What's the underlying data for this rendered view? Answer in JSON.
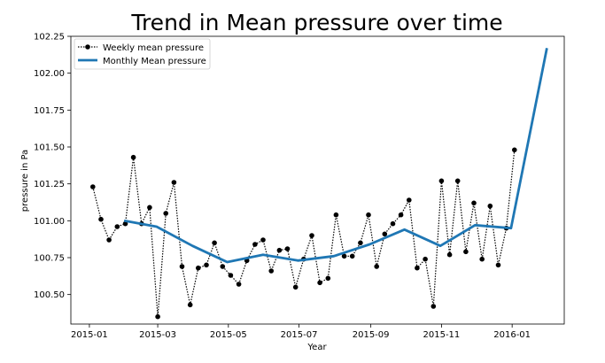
{
  "chart_data": {
    "type": "line",
    "title": "Trend in Mean pressure over time",
    "xlabel": "Year",
    "ylabel": "pressure in Pa",
    "x_ticks": [
      "2015-01",
      "2015-03",
      "2015-05",
      "2015-07",
      "2015-09",
      "2015-11",
      "2016-01"
    ],
    "y_ticks": [
      "100.50",
      "100.75",
      "101.00",
      "101.25",
      "101.50",
      "101.75",
      "102.00",
      "102.25"
    ],
    "ylim": [
      100.3,
      102.25
    ],
    "xlim": [
      "2014-12-16",
      "2016-02-15"
    ],
    "grid": false,
    "legend_position": "upper-left",
    "series": [
      {
        "name": "Weekly mean pressure",
        "style": "dotted-line-with-markers",
        "color": "#000000",
        "x": [
          "2015-01-04",
          "2015-01-11",
          "2015-01-18",
          "2015-01-25",
          "2015-02-01",
          "2015-02-08",
          "2015-02-15",
          "2015-02-22",
          "2015-03-01",
          "2015-03-08",
          "2015-03-15",
          "2015-03-22",
          "2015-03-29",
          "2015-04-05",
          "2015-04-12",
          "2015-04-19",
          "2015-04-26",
          "2015-05-03",
          "2015-05-10",
          "2015-05-17",
          "2015-05-24",
          "2015-05-31",
          "2015-06-07",
          "2015-06-14",
          "2015-06-21",
          "2015-06-28",
          "2015-07-05",
          "2015-07-12",
          "2015-07-19",
          "2015-07-26",
          "2015-08-02",
          "2015-08-09",
          "2015-08-16",
          "2015-08-23",
          "2015-08-30",
          "2015-09-06",
          "2015-09-13",
          "2015-09-20",
          "2015-09-27",
          "2015-10-04",
          "2015-10-11",
          "2015-10-18",
          "2015-10-25",
          "2015-11-01",
          "2015-11-08",
          "2015-11-15",
          "2015-11-22",
          "2015-11-29",
          "2015-12-06",
          "2015-12-13",
          "2015-12-20",
          "2015-12-27",
          "2016-01-03"
        ],
        "values": [
          101.23,
          101.01,
          100.87,
          100.96,
          100.98,
          101.43,
          100.98,
          101.09,
          100.35,
          101.05,
          101.26,
          100.69,
          100.43,
          100.68,
          100.7,
          100.85,
          100.69,
          100.63,
          100.57,
          100.73,
          100.84,
          100.87,
          100.66,
          100.8,
          100.81,
          100.55,
          100.74,
          100.9,
          100.58,
          100.61,
          101.04,
          100.76,
          100.76,
          100.85,
          101.04,
          100.69,
          100.91,
          100.98,
          101.04,
          101.14,
          100.68,
          100.74,
          100.42,
          101.27,
          100.77,
          101.27,
          100.79,
          101.12,
          100.74,
          101.1,
          100.7,
          100.95,
          101.48
        ]
      },
      {
        "name": "Monthly Mean pressure",
        "style": "solid-line",
        "color": "#1f77b4",
        "x": [
          "2015-01-31",
          "2015-02-28",
          "2015-03-31",
          "2015-04-30",
          "2015-05-31",
          "2015-06-30",
          "2015-07-31",
          "2015-08-31",
          "2015-09-30",
          "2015-10-31",
          "2015-11-30",
          "2015-12-31",
          "2016-01-31"
        ],
        "values": [
          101.0,
          100.96,
          100.83,
          100.72,
          100.77,
          100.73,
          100.76,
          100.84,
          100.94,
          100.83,
          100.97,
          100.95,
          102.17
        ]
      }
    ]
  }
}
